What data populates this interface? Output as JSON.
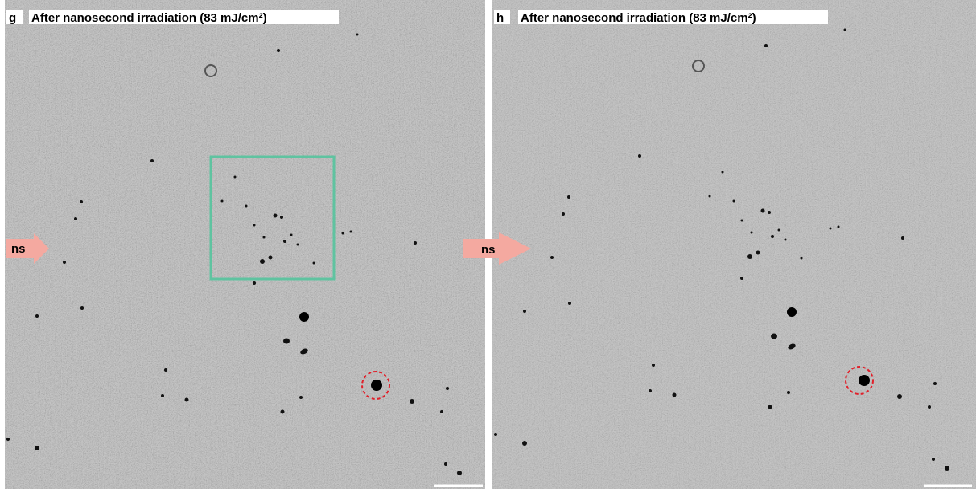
{
  "panels": [
    {
      "label": "g",
      "title": "After nanosecond irradiation (83 mJ/cm²)",
      "arrow_label": "ns"
    },
    {
      "label": "h",
      "title": "After nanosecond irradiation (83 mJ/cm²)",
      "arrow_label": "ns"
    }
  ]
}
